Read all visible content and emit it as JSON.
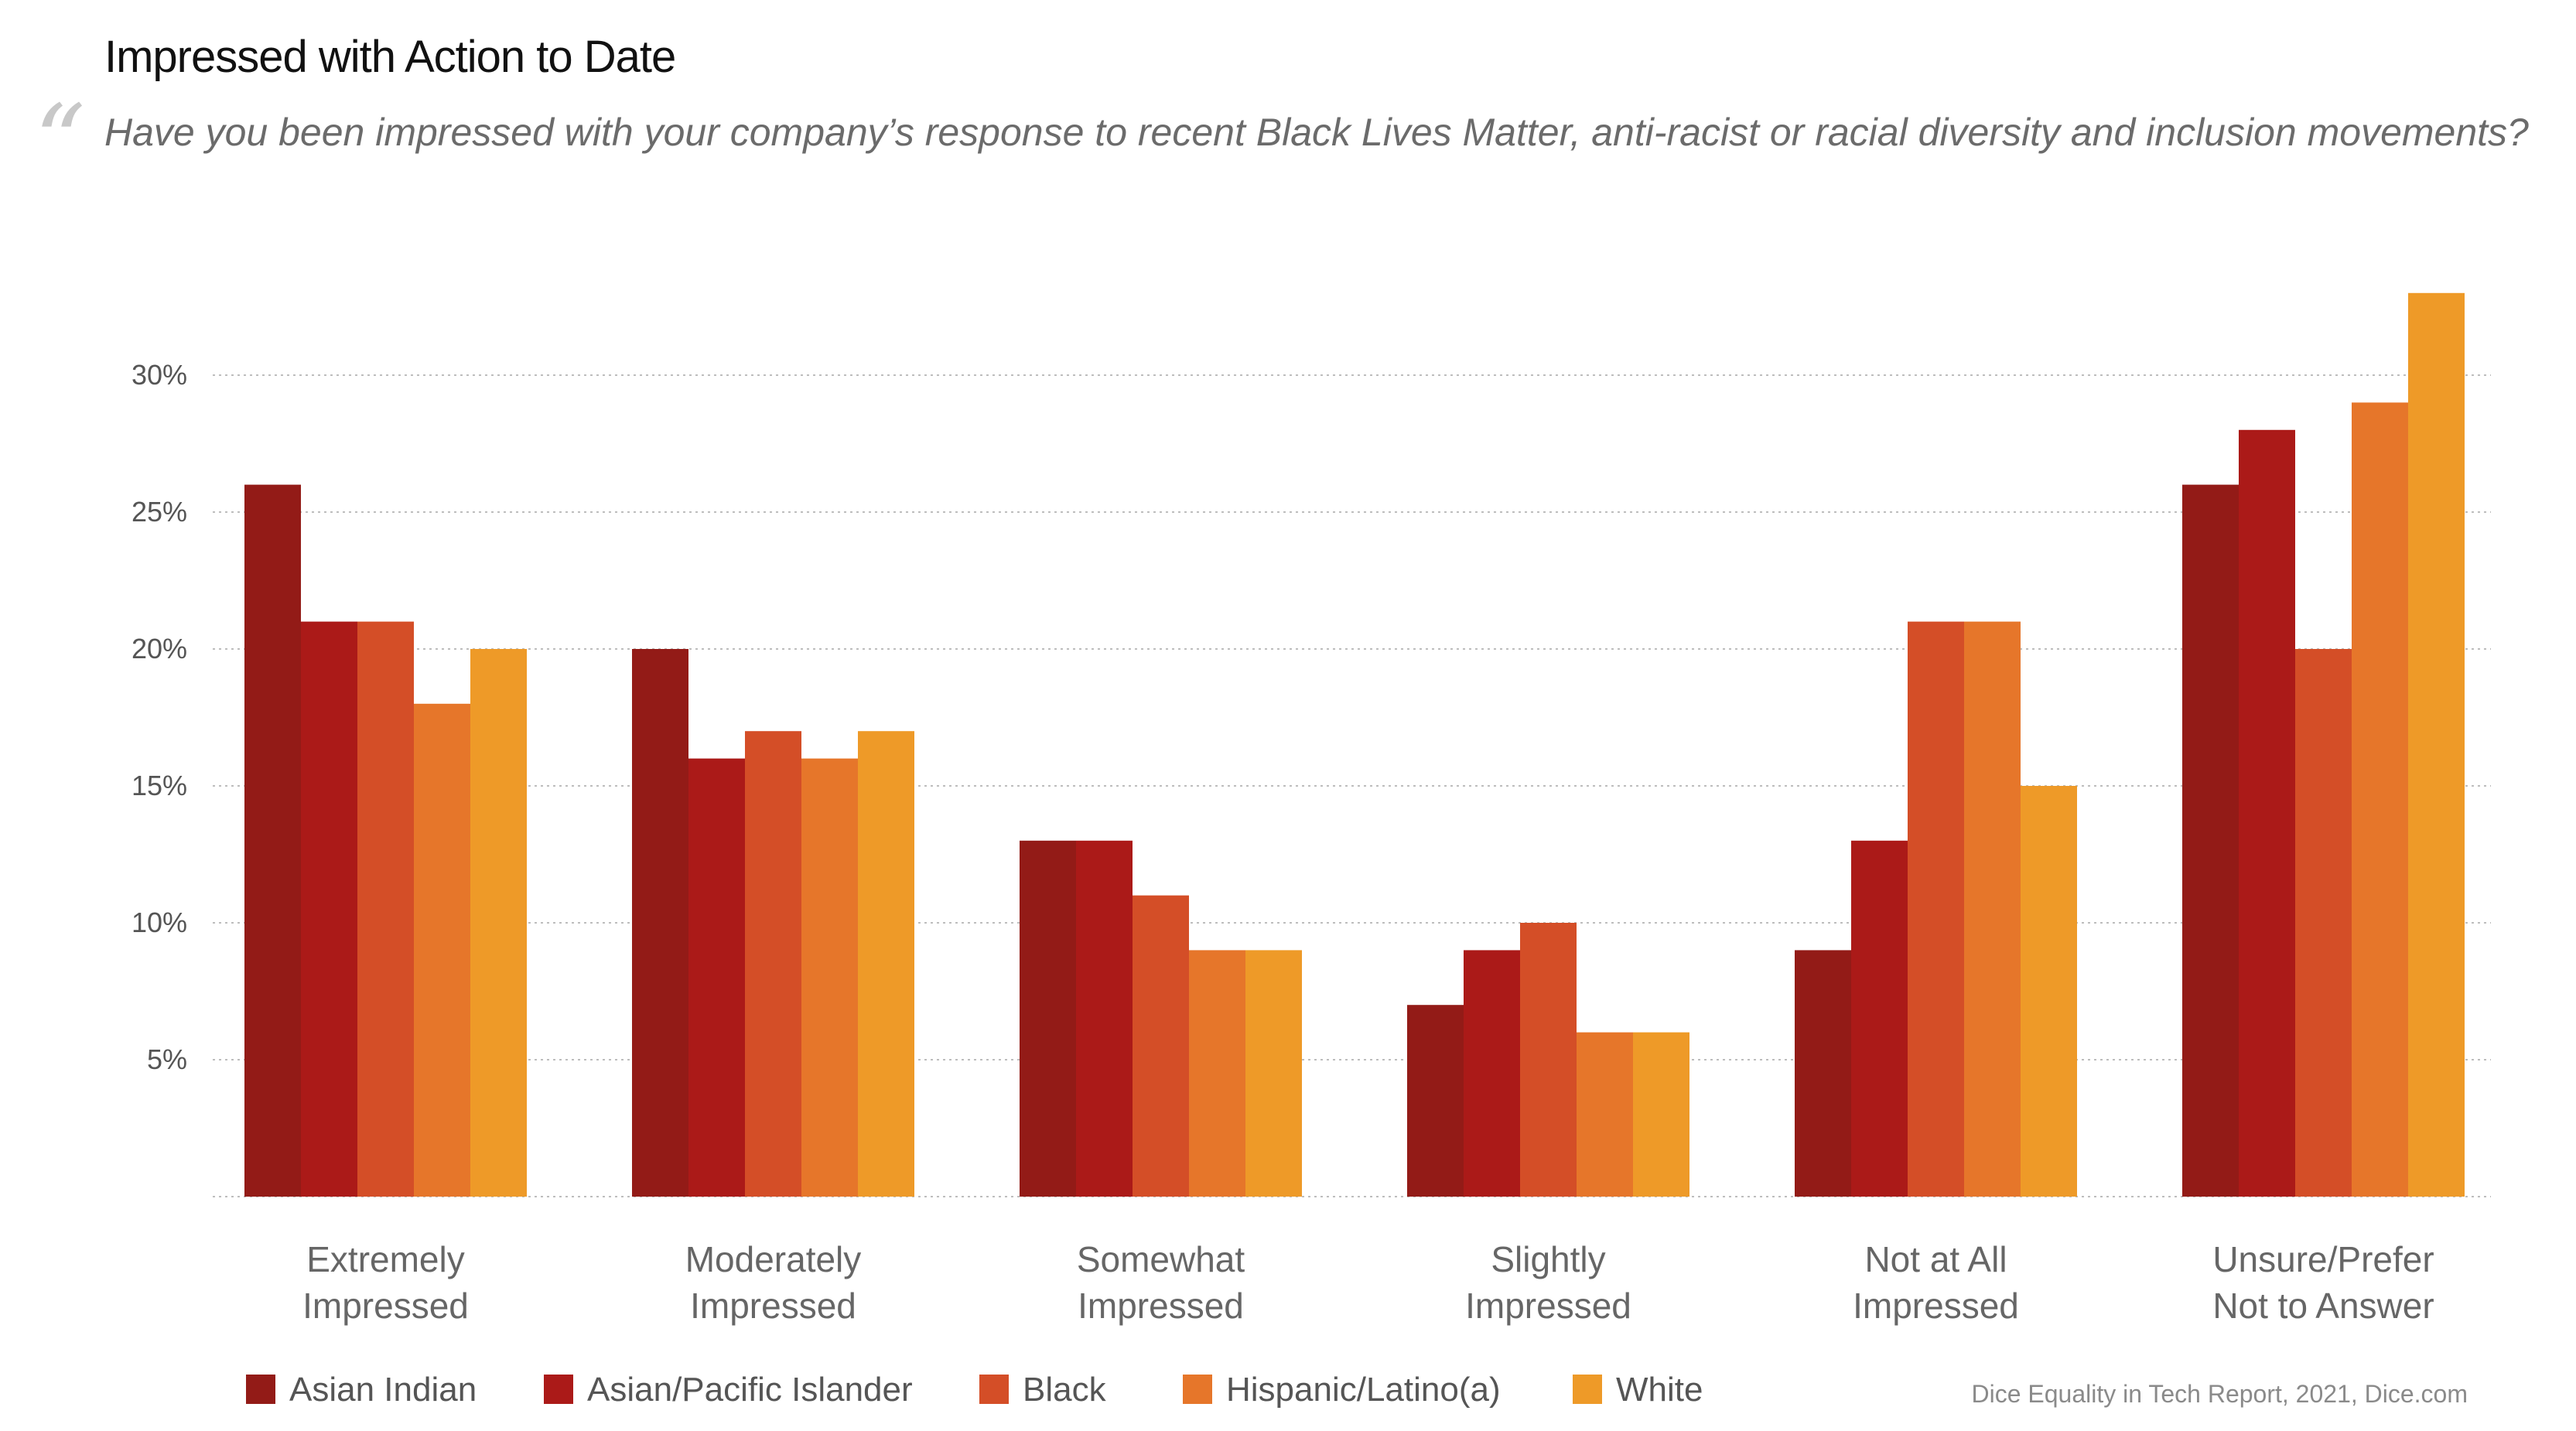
{
  "title": "Impressed with Action to Date",
  "question": "Have you been impressed with your company’s response to recent Black Lives Matter, anti-racist or racial diversity and inclusion movements?",
  "source": "Dice Equality in Tech Report, 2021, Dice.com",
  "chart_data": {
    "type": "bar",
    "categories": [
      [
        "Extremely",
        "Impressed"
      ],
      [
        "Moderately",
        "Impressed"
      ],
      [
        "Somewhat",
        "Impressed"
      ],
      [
        "Slightly",
        "Impressed"
      ],
      [
        "Not at All",
        "Impressed"
      ],
      [
        "Unsure/Prefer",
        "Not to Answer"
      ]
    ],
    "series": [
      {
        "name": "Asian Indian",
        "color": "#931b17",
        "values": [
          26,
          20,
          13,
          7,
          9,
          26
        ]
      },
      {
        "name": "Asian/Pacific Islander",
        "color": "#ab1a18",
        "values": [
          21,
          16,
          13,
          9,
          13,
          28
        ]
      },
      {
        "name": "Black",
        "color": "#d44e27",
        "values": [
          21,
          17,
          11,
          10,
          21,
          20
        ]
      },
      {
        "name": "Hispanic/Latino(a)",
        "color": "#e6762a",
        "values": [
          18,
          16,
          9,
          6,
          21,
          29
        ]
      },
      {
        "name": "White",
        "color": "#ee9a28",
        "values": [
          20,
          17,
          9,
          6,
          15,
          33
        ]
      }
    ],
    "yticks": [
      5,
      10,
      15,
      20,
      25,
      30
    ],
    "ytick_labels": [
      "5%",
      "10%",
      "15%",
      "20%",
      "25%",
      "30%"
    ],
    "ylim": [
      0,
      33
    ],
    "grid": true,
    "legend_position": "bottom-left"
  }
}
